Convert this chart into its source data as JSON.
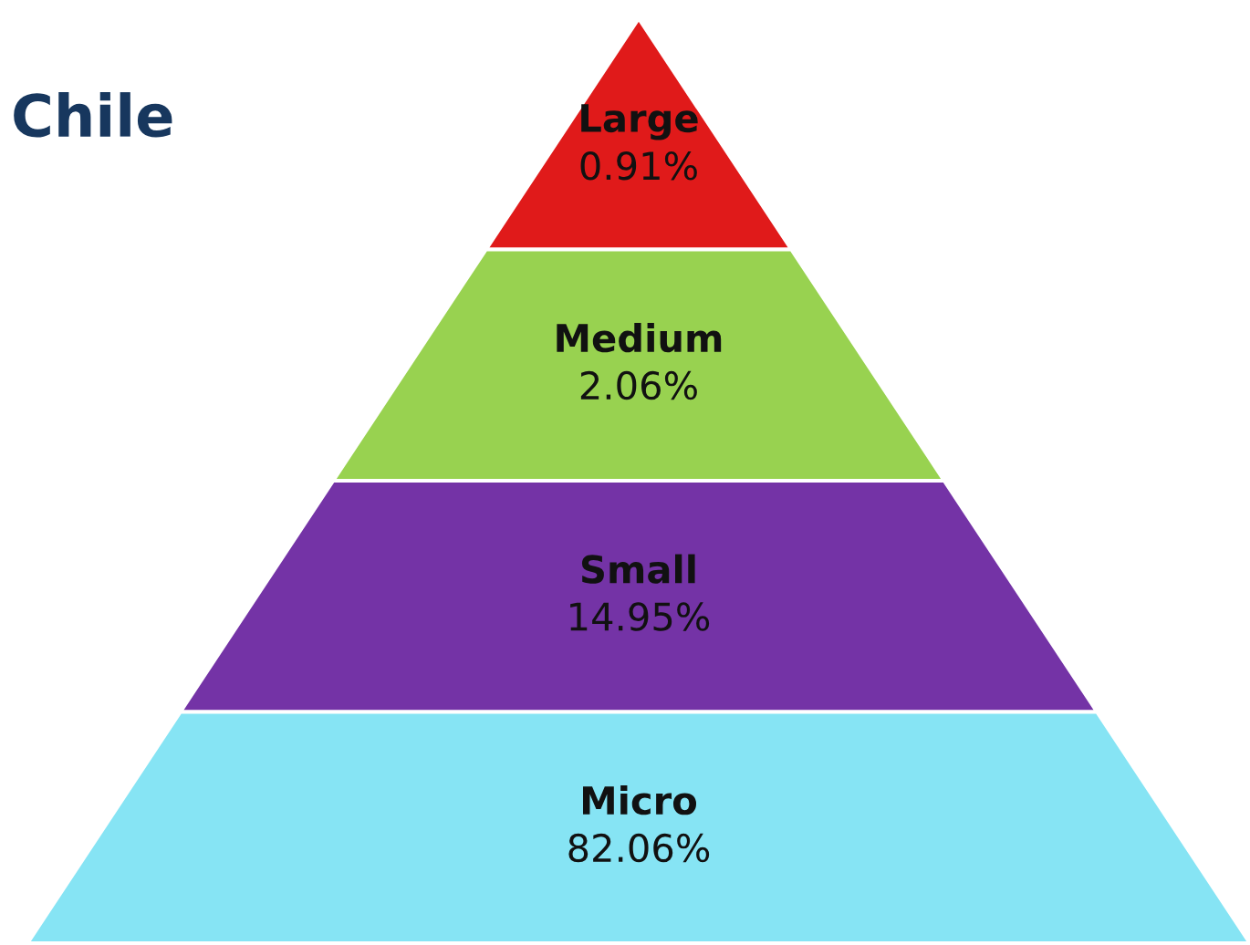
{
  "chart_data": {
    "type": "other",
    "title": "Chile",
    "categories": [
      "Large",
      "Medium",
      "Small",
      "Micro"
    ],
    "values": [
      0.91,
      2.06,
      14.95,
      82.06
    ],
    "value_labels": [
      "0.91%",
      "2.06%",
      "14.95%",
      "82.06%"
    ],
    "colors": [
      "#e01a1a",
      "#98d250",
      "#7433a6",
      "#86e4f4"
    ]
  }
}
